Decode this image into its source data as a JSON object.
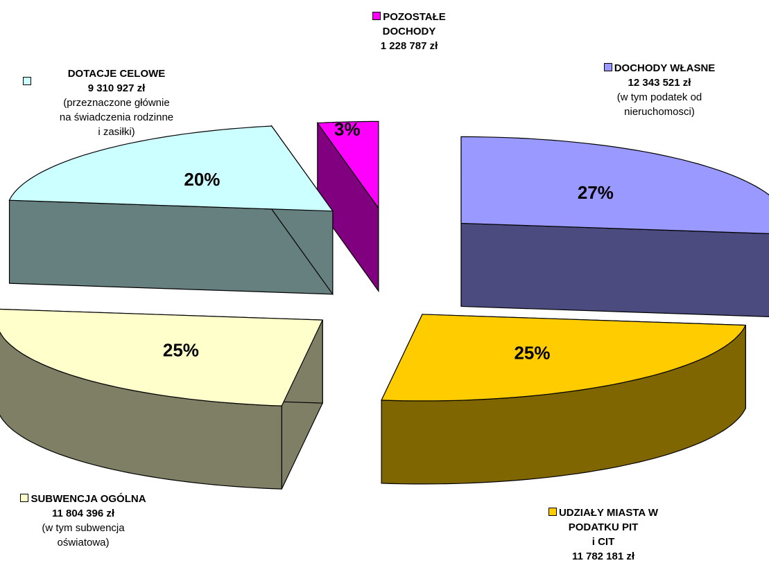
{
  "chart_data": {
    "type": "pie",
    "title": "",
    "slices": [
      {
        "key": "wlasne",
        "value": 27,
        "pct_label": "27%",
        "color": "#9999FF",
        "side_color": "#4B4B7F",
        "label_lines": [
          "DOCHODY WŁASNE",
          "12 343 521 zł"
        ],
        "note_lines": [
          "(w  tym podatek od",
          "nieruchomosci)"
        ]
      },
      {
        "key": "pit",
        "value": 25,
        "pct_label": "25%",
        "color": "#FFCC00",
        "side_color": "#7F6600",
        "label_lines": [
          "UDZIAŁY MIASTA W",
          "PODATKU PIT",
          "i CIT",
          "11 782 181 zł"
        ],
        "note_lines": []
      },
      {
        "key": "subwencja",
        "value": 25,
        "pct_label": "25%",
        "color": "#FFFFCC",
        "side_color": "#7F7F66",
        "label_lines": [
          "SUBWENCJA OGÓLNA",
          "11 804 396 zł"
        ],
        "note_lines": [
          "(w tym subwencja",
          "oświatowa)"
        ]
      },
      {
        "key": "dotacje",
        "value": 20,
        "pct_label": "20%",
        "color": "#CCFFFF",
        "side_color": "#667F7F",
        "label_lines": [
          "DOTACJE CELOWE",
          "9 310 927 zł"
        ],
        "note_lines": [
          "(przeznaczone głównie",
          "na  świadczenia rodzinne",
          "i zasiłki)"
        ]
      },
      {
        "key": "pozostale",
        "value": 3,
        "pct_label": "3%",
        "color": "#FF00FF",
        "side_color": "#800080",
        "label_lines": [
          "POZOSTAŁE",
          "DOCHODY",
          "1 228 787 zł"
        ],
        "note_lines": []
      }
    ],
    "legend_style": "callouts"
  }
}
